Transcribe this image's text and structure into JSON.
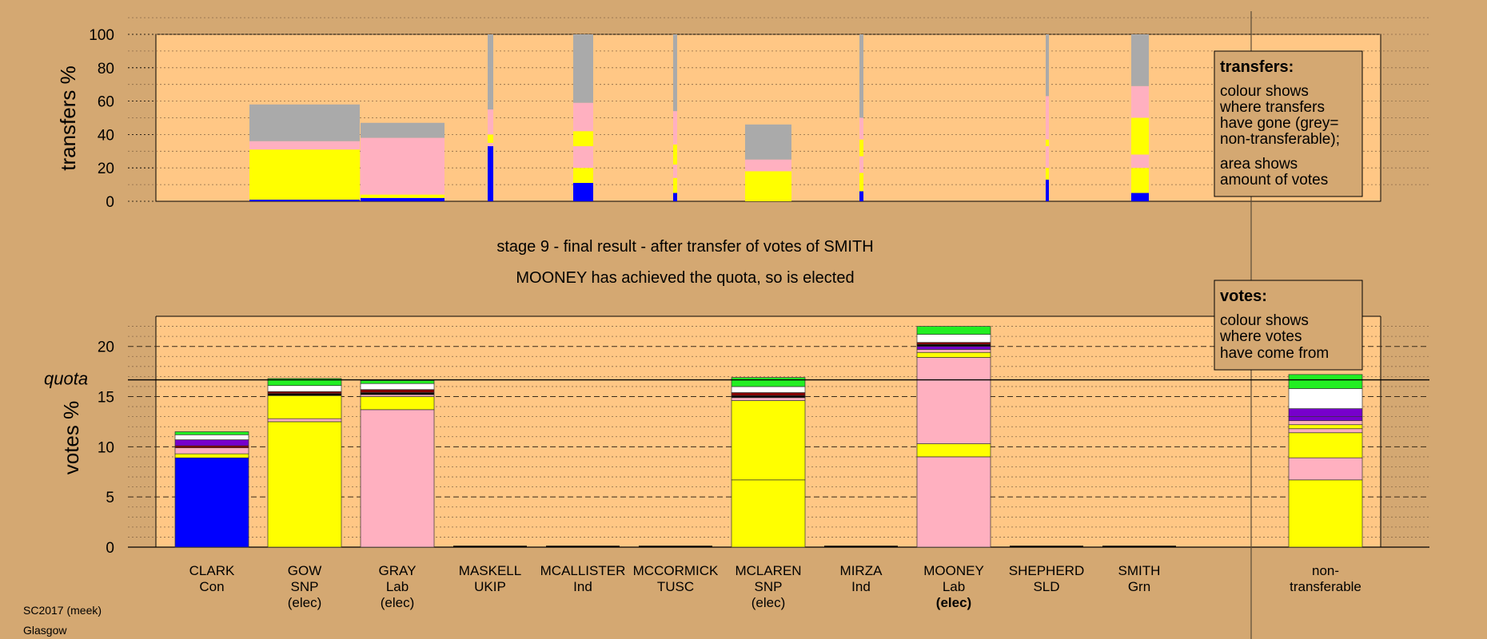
{
  "colors": {
    "background": "#d4a872",
    "plot": "#ffc785",
    "Con": "#0000ff",
    "SNP": "#ffff00",
    "Lab": "#ffb0c0",
    "nontransferable": "#aaaaaa",
    "Grn": "#22ee22",
    "SLD": "#ffffff",
    "Ind": "#7700cc",
    "TUSC": "#880000",
    "UKIP": "#000000"
  },
  "chart_data": [
    {
      "type": "bar",
      "subtype": "stacked-transfers",
      "ylabel": "transfers %",
      "ylim": [
        0,
        100
      ],
      "yticks": [
        0,
        20,
        40,
        60,
        80,
        100
      ],
      "note": "stacked colour blocks per source candidate, value units = transfer %",
      "columns": [
        {
          "source": "CLARK",
          "segments": [
            {
              "party": "Con",
              "value": 1
            },
            {
              "party": "SNP",
              "value": 4
            },
            {
              "party": "SNP",
              "value": 26
            },
            {
              "party": "Lab",
              "value": 5
            },
            {
              "party": "nontransferable",
              "value": 22
            }
          ]
        },
        {
          "source": "GOW",
          "segments": [
            {
              "party": "Con",
              "value": 2
            },
            {
              "party": "SNP",
              "value": 2
            },
            {
              "party": "Lab",
              "value": 34
            },
            {
              "party": "nontransferable",
              "value": 9
            }
          ]
        },
        {
          "source": "GRAY",
          "segments": [
            {
              "party": "Con",
              "value": 33
            },
            {
              "party": "Lab",
              "value": 2
            },
            {
              "party": "SNP",
              "value": 5
            },
            {
              "party": "Lab",
              "value": 15
            },
            {
              "party": "nontransferable",
              "value": 45
            }
          ]
        },
        {
          "source": "MASKELL",
          "segments": [
            {
              "party": "Con",
              "value": 11
            },
            {
              "party": "SNP",
              "value": 9
            },
            {
              "party": "Lab",
              "value": 13
            },
            {
              "party": "SNP",
              "value": 9
            },
            {
              "party": "Lab",
              "value": 17
            },
            {
              "party": "nontransferable",
              "value": 41
            }
          ]
        },
        {
          "source": "MCALLISTER",
          "segments": [
            {
              "party": "Con",
              "value": 5
            },
            {
              "party": "SNP",
              "value": 9
            },
            {
              "party": "Lab",
              "value": 8
            },
            {
              "party": "SNP",
              "value": 12
            },
            {
              "party": "Lab",
              "value": 20
            },
            {
              "party": "nontransferable",
              "value": 46
            }
          ]
        },
        {
          "source": "MCCORMICK",
          "segments": [
            {
              "party": "SNP",
              "value": 1
            },
            {
              "party": "SNP",
              "value": 17
            },
            {
              "party": "Lab",
              "value": 7
            },
            {
              "party": "nontransferable",
              "value": 21
            }
          ]
        },
        {
          "source": "MCLAREN",
          "segments": [
            {
              "party": "Con",
              "value": 6
            },
            {
              "party": "SNP",
              "value": 11
            },
            {
              "party": "Lab",
              "value": 10
            },
            {
              "party": "SNP",
              "value": 10
            },
            {
              "party": "Lab",
              "value": 13
            },
            {
              "party": "nontransferable",
              "value": 50
            }
          ]
        },
        {
          "source": "MIRZA",
          "segments": [
            {
              "party": "Con",
              "value": 13
            },
            {
              "party": "SNP",
              "value": 7
            },
            {
              "party": "Lab",
              "value": 13
            },
            {
              "party": "SNP",
              "value": 4
            },
            {
              "party": "Lab",
              "value": 26
            },
            {
              "party": "nontransferable",
              "value": 37
            }
          ]
        },
        {
          "source": "SHEPHERD",
          "segments": [
            {
              "party": "Con",
              "value": 5
            },
            {
              "party": "SNP",
              "value": 15
            },
            {
              "party": "Lab",
              "value": 8
            },
            {
              "party": "SNP",
              "value": 22
            },
            {
              "party": "Lab",
              "value": 19
            },
            {
              "party": "nontransferable",
              "value": 31
            }
          ]
        }
      ]
    },
    {
      "type": "bar",
      "subtype": "stacked-votes",
      "ylabel": "votes %",
      "ylim": [
        0,
        23
      ],
      "yticks": [
        0,
        5,
        10,
        15,
        20
      ],
      "quota": 16.67,
      "categories": [
        "CLARK",
        "GOW",
        "GRAY",
        "MASKELL",
        "MCALLISTER",
        "MCCORMICK",
        "MCLAREN",
        "MIRZA",
        "MOONEY",
        "SHEPHERD",
        "SMITH",
        "non-transferable"
      ],
      "bars": [
        {
          "name": "CLARK",
          "segments": [
            {
              "party": "Con",
              "value": 8.9
            },
            {
              "party": "SNP",
              "value": 0.4
            },
            {
              "party": "Lab",
              "value": 0.6
            },
            {
              "party": "TUSC",
              "value": 0.2
            },
            {
              "party": "Ind",
              "value": 0.6
            },
            {
              "party": "SLD",
              "value": 0.5
            },
            {
              "party": "Grn",
              "value": 0.3
            }
          ]
        },
        {
          "name": "GOW",
          "segments": [
            {
              "party": "SNP",
              "value": 12.5
            },
            {
              "party": "Lab",
              "value": 0.3
            },
            {
              "party": "SNP",
              "value": 2.3
            },
            {
              "party": "UKIP",
              "value": 0.2
            },
            {
              "party": "TUSC",
              "value": 0.2
            },
            {
              "party": "SLD",
              "value": 0.6
            },
            {
              "party": "Grn",
              "value": 0.7
            }
          ]
        },
        {
          "name": "GRAY",
          "segments": [
            {
              "party": "Lab",
              "value": 13.7
            },
            {
              "party": "SNP",
              "value": 1.3
            },
            {
              "party": "Lab",
              "value": 0.2
            },
            {
              "party": "UKIP",
              "value": 0.2
            },
            {
              "party": "TUSC",
              "value": 0.3
            },
            {
              "party": "SLD",
              "value": 0.6
            },
            {
              "party": "Grn",
              "value": 0.3
            }
          ]
        },
        {
          "name": "MASKELL",
          "segments": []
        },
        {
          "name": "MCALLISTER",
          "segments": []
        },
        {
          "name": "MCCORMICK",
          "segments": []
        },
        {
          "name": "MCLAREN",
          "segments": [
            {
              "party": "SNP",
              "value": 6.7
            },
            {
              "party": "SNP",
              "value": 7.9
            },
            {
              "party": "Lab",
              "value": 0.3
            },
            {
              "party": "UKIP",
              "value": 0.2
            },
            {
              "party": "TUSC",
              "value": 0.3
            },
            {
              "party": "SLD",
              "value": 0.6
            },
            {
              "party": "Grn",
              "value": 0.9
            }
          ]
        },
        {
          "name": "MIRZA",
          "segments": []
        },
        {
          "name": "MOONEY",
          "segments": [
            {
              "party": "Lab",
              "value": 9.0
            },
            {
              "party": "SNP",
              "value": 1.3
            },
            {
              "party": "Lab",
              "value": 8.6
            },
            {
              "party": "SNP",
              "value": 0.5
            },
            {
              "party": "Lab",
              "value": 0.3
            },
            {
              "party": "Ind",
              "value": 0.3
            },
            {
              "party": "UKIP",
              "value": 0.2
            },
            {
              "party": "TUSC",
              "value": 0.2
            },
            {
              "party": "SLD",
              "value": 0.8
            },
            {
              "party": "Grn",
              "value": 0.8
            }
          ]
        },
        {
          "name": "SHEPHERD",
          "segments": []
        },
        {
          "name": "SMITH",
          "segments": []
        },
        {
          "name": "non-transferable",
          "segments": [
            {
              "party": "SNP",
              "value": 6.7
            },
            {
              "party": "Lab",
              "value": 2.2
            },
            {
              "party": "SNP",
              "value": 2.5
            },
            {
              "party": "Lab",
              "value": 0.4
            },
            {
              "party": "SNP",
              "value": 0.4
            },
            {
              "party": "Lab",
              "value": 0.4
            },
            {
              "party": "Ind",
              "value": 0.4
            },
            {
              "party": "Ind",
              "value": 0.8
            },
            {
              "party": "SLD",
              "value": 2.0
            },
            {
              "party": "Grn",
              "value": 1.4
            }
          ]
        }
      ]
    }
  ],
  "text": {
    "transfers_axis": "transfers %",
    "votes_axis": "votes %",
    "quota_label": "quota",
    "stage_line": "stage 9 - final result - after transfer of votes of SMITH",
    "result_line": "MOONEY has achieved the quota, so is elected",
    "legend_transfers_title": "transfers:",
    "legend_transfers_lines": [
      "colour shows",
      "where transfers",
      "have gone (grey=",
      "non-transferable);",
      "area shows",
      "amount of votes"
    ],
    "legend_votes_title": "votes:",
    "legend_votes_lines": [
      "colour shows",
      "where votes",
      "have come from"
    ],
    "footer_1": "SC2017 (meek)",
    "footer_2": "Glasgow"
  },
  "candidates": [
    {
      "name": "CLARK",
      "party": "Con",
      "status": ""
    },
    {
      "name": "GOW",
      "party": "SNP",
      "status": "(elec)"
    },
    {
      "name": "GRAY",
      "party": "Lab",
      "status": "(elec)"
    },
    {
      "name": "MASKELL",
      "party": "UKIP",
      "status": ""
    },
    {
      "name": "MCALLISTER",
      "party": "Ind",
      "status": ""
    },
    {
      "name": "MCCORMICK",
      "party": "TUSC",
      "status": ""
    },
    {
      "name": "MCLAREN",
      "party": "SNP",
      "status": "(elec)"
    },
    {
      "name": "MIRZA",
      "party": "Ind",
      "status": ""
    },
    {
      "name": "MOONEY",
      "party": "Lab",
      "status": "(elec)"
    },
    {
      "name": "SHEPHERD",
      "party": "SLD",
      "status": ""
    },
    {
      "name": "SMITH",
      "party": "Grn",
      "status": ""
    },
    {
      "name": "non-",
      "party": "transferable",
      "status": ""
    }
  ]
}
